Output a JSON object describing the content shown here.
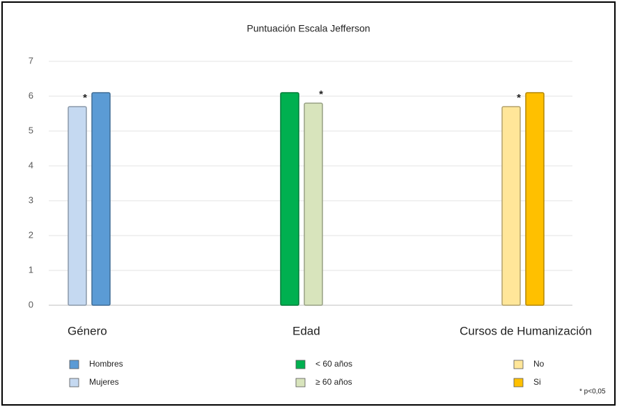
{
  "chart_data": {
    "type": "bar",
    "title": "Puntuación Escala Jefferson",
    "ylim": [
      0,
      7
    ],
    "yticks": [
      0,
      1,
      2,
      3,
      4,
      5,
      6,
      7
    ],
    "grid": true,
    "groups": [
      {
        "label": "Género",
        "series": [
          {
            "name": "Mujeres",
            "color": "#c5d9f1",
            "value": 5.7,
            "annotation": "*"
          },
          {
            "name": "Hombres",
            "color": "#5b9bd5",
            "value": 6.1
          }
        ]
      },
      {
        "label": "Edad",
        "series": [
          {
            "name": "< 60 años",
            "color": "#00b050",
            "value": 6.1
          },
          {
            "name": "≥ 60 años",
            "color": "#d8e4bc",
            "value": 5.8,
            "annotation": "*"
          }
        ]
      },
      {
        "label": "Cursos de Humanización",
        "series": [
          {
            "name": "No",
            "color": "#ffe699",
            "value": 5.7,
            "annotation": "*"
          },
          {
            "name": "Si",
            "color": "#ffc000",
            "value": 6.1
          }
        ]
      }
    ],
    "note": "* p<0,05"
  }
}
